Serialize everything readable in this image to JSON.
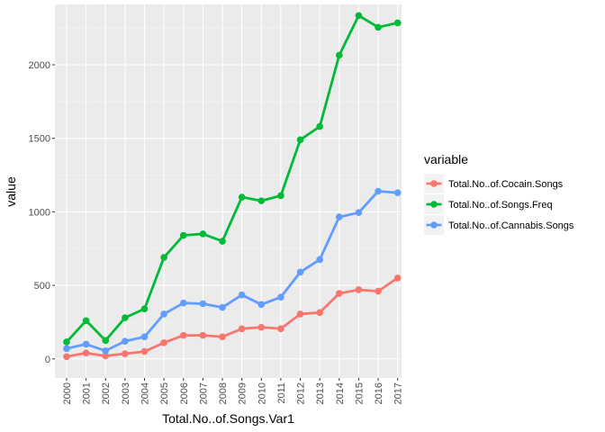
{
  "chart_data": {
    "type": "line",
    "xlabel": "Total.No..of.Songs.Var1",
    "ylabel": "value",
    "x": [
      "2000",
      "2001",
      "2002",
      "2003",
      "2004",
      "2005",
      "2006",
      "2007",
      "2008",
      "2009",
      "2010",
      "2011",
      "2012",
      "2013",
      "2014",
      "2015",
      "2016",
      "2017"
    ],
    "ylim": [
      -130,
      2410
    ],
    "yticks": [
      0,
      500,
      1000,
      1500,
      2000
    ],
    "grid": true,
    "legend": {
      "title": "variable",
      "placement": "right"
    },
    "series": [
      {
        "name": "Total.No..of.Cocain.Songs",
        "color": "#f8766d",
        "values": [
          15,
          40,
          20,
          35,
          50,
          110,
          160,
          160,
          150,
          205,
          215,
          205,
          305,
          315,
          445,
          470,
          460,
          550
        ]
      },
      {
        "name": "Total.No..of.Songs.Freq",
        "color": "#00ba38",
        "values": [
          115,
          260,
          125,
          280,
          340,
          690,
          840,
          850,
          800,
          1100,
          1075,
          1110,
          1490,
          1580,
          2065,
          2335,
          2255,
          2285
        ]
      },
      {
        "name": "Total.No..of.Cannabis.Songs",
        "color": "#619cff",
        "values": [
          70,
          100,
          55,
          120,
          150,
          305,
          380,
          375,
          350,
          435,
          370,
          420,
          590,
          675,
          965,
          995,
          1140,
          1130
        ]
      }
    ]
  }
}
